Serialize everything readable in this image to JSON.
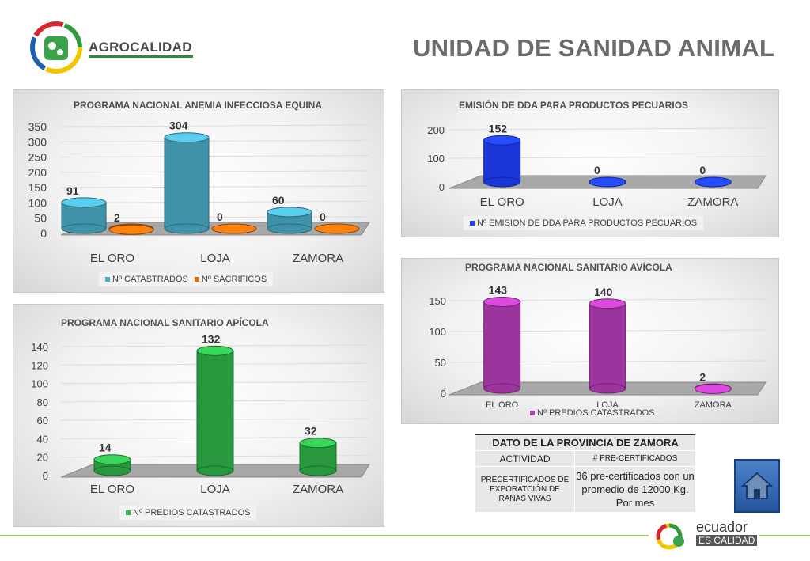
{
  "header": {
    "brand": "AGROCALIDAD",
    "title": "UNIDAD DE SANIDAD ANIMAL"
  },
  "chart_data": [
    {
      "id": "equina",
      "type": "bar",
      "title": "PROGRAMA NACIONAL ANEMIA INFECCIOSA EQUINA",
      "categories": [
        "EL ORO",
        "LOJA",
        "ZAMORA"
      ],
      "series": [
        {
          "name": "Nº CATASTRADOS",
          "values": [
            91,
            304,
            60
          ],
          "color": "#4bacc6"
        },
        {
          "name": "Nº SACRIFICOS",
          "values": [
            2,
            0,
            0
          ],
          "color": "#e46c0a"
        }
      ],
      "ylim": [
        0,
        350
      ],
      "yticks": [
        "0",
        "50",
        "100",
        "150",
        "200",
        "250",
        "300",
        "350"
      ],
      "legend": "bottom",
      "grid": true
    },
    {
      "id": "dda",
      "type": "bar",
      "title": "EMISIÓN DE DDA PARA PRODUCTOS PECUARIOS",
      "categories": [
        "EL ORO",
        "LOJA",
        "ZAMORA"
      ],
      "series": [
        {
          "name": "Nº EMISION DE DDA PARA PRODUCTOS PECUARIOS",
          "values": [
            152,
            0,
            0
          ],
          "color": "#1f3fff"
        }
      ],
      "ylim": [
        0,
        200
      ],
      "yticks": [
        "0",
        "100",
        "200"
      ],
      "legend": "bottom",
      "grid": true
    },
    {
      "id": "avicola",
      "type": "bar",
      "title": "PROGRAMA NACIONAL SANITARIO AVÍCOLA",
      "categories": [
        "EL ORO",
        "LOJA",
        "ZAMORA"
      ],
      "series": [
        {
          "name": "Nº PREDIOS CATASTRADOS",
          "values": [
            143,
            140,
            2
          ],
          "color": "#b83dba"
        }
      ],
      "ylim": [
        0,
        150
      ],
      "yticks": [
        "0",
        "50",
        "100",
        "150"
      ],
      "legend": "bottom",
      "grid": true
    },
    {
      "id": "apicola",
      "type": "bar",
      "title": "PROGRAMA NACIONAL SANITARIO APÍCOLA",
      "categories": [
        "EL ORO",
        "LOJA",
        "ZAMORA"
      ],
      "series": [
        {
          "name": "Nº PREDIOS CATASTRADOS",
          "values": [
            14,
            132,
            32
          ],
          "color": "#2fb34a"
        }
      ],
      "ylim": [
        0,
        140
      ],
      "yticks": [
        "0",
        "20",
        "40",
        "60",
        "80",
        "100",
        "120",
        "140"
      ],
      "legend": "bottom",
      "grid": true
    }
  ],
  "zamora_table": {
    "title": "DATO DE LA PROVINCIA DE ZAMORA",
    "col1": "ACTIVIDAD",
    "col2": "# PRE-CERTIFICADOS",
    "row_activity": "PRECERTIFICADOS DE EXPORATCIÓN DE RANAS VIVAS",
    "row_value": "36 pre-certificados con un promedio de 12000 Kg. Por mes"
  },
  "footer": {
    "brand_line1": "ecuador",
    "brand_line2": "ES CALIDAD"
  }
}
